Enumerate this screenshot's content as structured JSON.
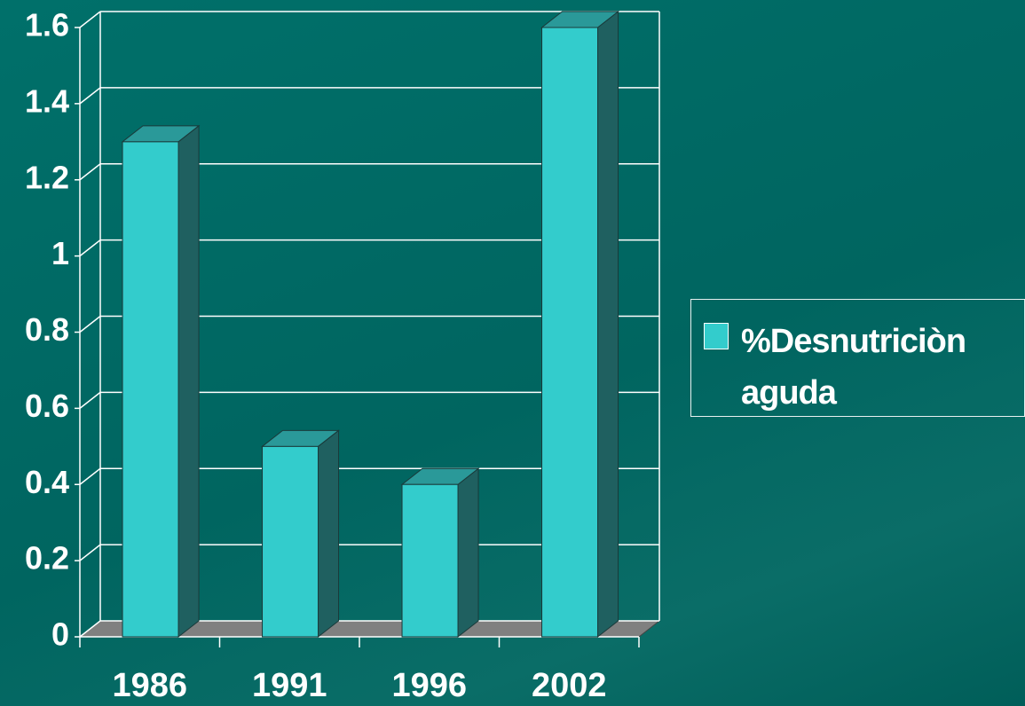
{
  "chart_data": {
    "type": "bar3d",
    "categories": [
      "1986",
      "1991",
      "1996",
      "2002"
    ],
    "series": [
      {
        "name": "%Desnutriciòn aguda",
        "color": "#33cccc",
        "values": [
          1.3,
          0.5,
          0.4,
          1.6
        ]
      }
    ],
    "ylim": [
      0,
      1.6
    ],
    "yticks": [
      0,
      0.2,
      0.4,
      0.6,
      0.8,
      1,
      1.2,
      1.4,
      1.6
    ],
    "grid": true,
    "legend": "right"
  }
}
